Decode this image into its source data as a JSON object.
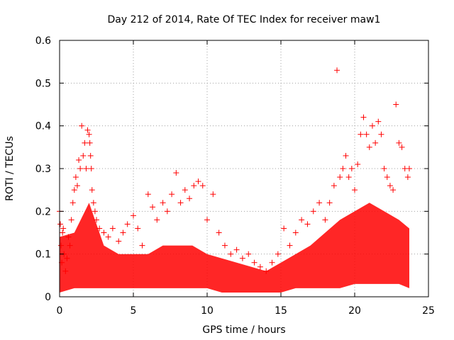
{
  "chart_data": {
    "type": "scatter",
    "title": "Day 212 of 2014, Rate Of TEC Index for receiver maw1",
    "xlabel": "GPS time / hours",
    "ylabel": "ROTI / TECUs",
    "xlim": [
      0,
      25
    ],
    "ylim": [
      0,
      0.6
    ],
    "xticks": [
      0,
      5,
      10,
      15,
      20,
      25
    ],
    "yticks": [
      0,
      0.1,
      0.2,
      0.3,
      0.4,
      0.5,
      0.6
    ],
    "xtick_labels": [
      "0",
      "5",
      "10",
      "15",
      "20",
      "25"
    ],
    "ytick_labels": [
      "0",
      "0.1",
      "0.2",
      "0.3",
      "0.4",
      "0.5",
      "0.6"
    ],
    "grid": true,
    "marker": "+",
    "color": "#ff0000",
    "series": [
      {
        "x": [
          0.0,
          0.05,
          0.1,
          0.15,
          0.2,
          0.25,
          0.3,
          0.4,
          0.5,
          0.6,
          0.7,
          0.8,
          0.9,
          1.0,
          1.1,
          1.2,
          1.3,
          1.4,
          1.5,
          1.6,
          1.7,
          1.8,
          1.9,
          2.0,
          2.05,
          2.1,
          2.15,
          2.2,
          2.3,
          2.4,
          2.5,
          2.7,
          3.0,
          3.3,
          3.6,
          4.0,
          4.3,
          4.6,
          5.0,
          5.3,
          5.6,
          6.0,
          6.3,
          6.6,
          7.0,
          7.3,
          7.6,
          7.9,
          8.2,
          8.5,
          8.8,
          9.1,
          9.4,
          9.7,
          10.0,
          10.4,
          10.8,
          11.2,
          11.6,
          12.0,
          12.4,
          12.8,
          13.2,
          13.6,
          14.0,
          14.4,
          14.8,
          15.2,
          15.6,
          16.0,
          16.4,
          16.8,
          17.2,
          17.6,
          18.0,
          18.3,
          18.6,
          18.8,
          19.0,
          19.2,
          19.4,
          19.6,
          19.8,
          20.0,
          20.2,
          20.4,
          20.6,
          20.8,
          21.0,
          21.2,
          21.4,
          21.6,
          21.8,
          22.0,
          22.2,
          22.4,
          22.6,
          22.8,
          23.0,
          23.2,
          23.4,
          23.6,
          23.7
        ],
        "y": [
          0.2,
          0.17,
          0.12,
          0.08,
          0.15,
          0.16,
          0.1,
          0.06,
          0.09,
          0.14,
          0.12,
          0.18,
          0.22,
          0.25,
          0.28,
          0.26,
          0.32,
          0.3,
          0.4,
          0.33,
          0.36,
          0.3,
          0.39,
          0.38,
          0.36,
          0.33,
          0.3,
          0.25,
          0.22,
          0.2,
          0.18,
          0.16,
          0.15,
          0.14,
          0.16,
          0.13,
          0.15,
          0.17,
          0.19,
          0.16,
          0.12,
          0.24,
          0.21,
          0.18,
          0.22,
          0.2,
          0.24,
          0.29,
          0.22,
          0.25,
          0.23,
          0.26,
          0.27,
          0.26,
          0.18,
          0.24,
          0.15,
          0.12,
          0.1,
          0.11,
          0.09,
          0.1,
          0.08,
          0.07,
          0.06,
          0.08,
          0.1,
          0.16,
          0.12,
          0.15,
          0.18,
          0.17,
          0.2,
          0.22,
          0.18,
          0.22,
          0.26,
          0.53,
          0.28,
          0.3,
          0.33,
          0.28,
          0.3,
          0.25,
          0.31,
          0.38,
          0.42,
          0.38,
          0.35,
          0.4,
          0.36,
          0.41,
          0.38,
          0.3,
          0.28,
          0.26,
          0.25,
          0.45,
          0.36,
          0.35,
          0.3,
          0.28,
          0.3
        ]
      }
    ],
    "band": {
      "x": [
        0,
        1,
        2,
        3,
        4,
        5,
        6,
        7,
        8,
        9,
        10,
        11,
        12,
        13,
        14,
        15,
        16,
        17,
        18,
        19,
        20,
        21,
        22,
        23,
        23.7
      ],
      "upper": [
        0.14,
        0.15,
        0.22,
        0.12,
        0.1,
        0.1,
        0.1,
        0.12,
        0.12,
        0.12,
        0.1,
        0.09,
        0.08,
        0.07,
        0.06,
        0.08,
        0.1,
        0.12,
        0.15,
        0.18,
        0.2,
        0.22,
        0.2,
        0.18,
        0.16
      ],
      "lower": [
        0.01,
        0.02,
        0.02,
        0.02,
        0.02,
        0.02,
        0.02,
        0.02,
        0.02,
        0.02,
        0.02,
        0.01,
        0.01,
        0.01,
        0.01,
        0.01,
        0.02,
        0.02,
        0.02,
        0.02,
        0.03,
        0.03,
        0.03,
        0.03,
        0.02
      ]
    }
  }
}
